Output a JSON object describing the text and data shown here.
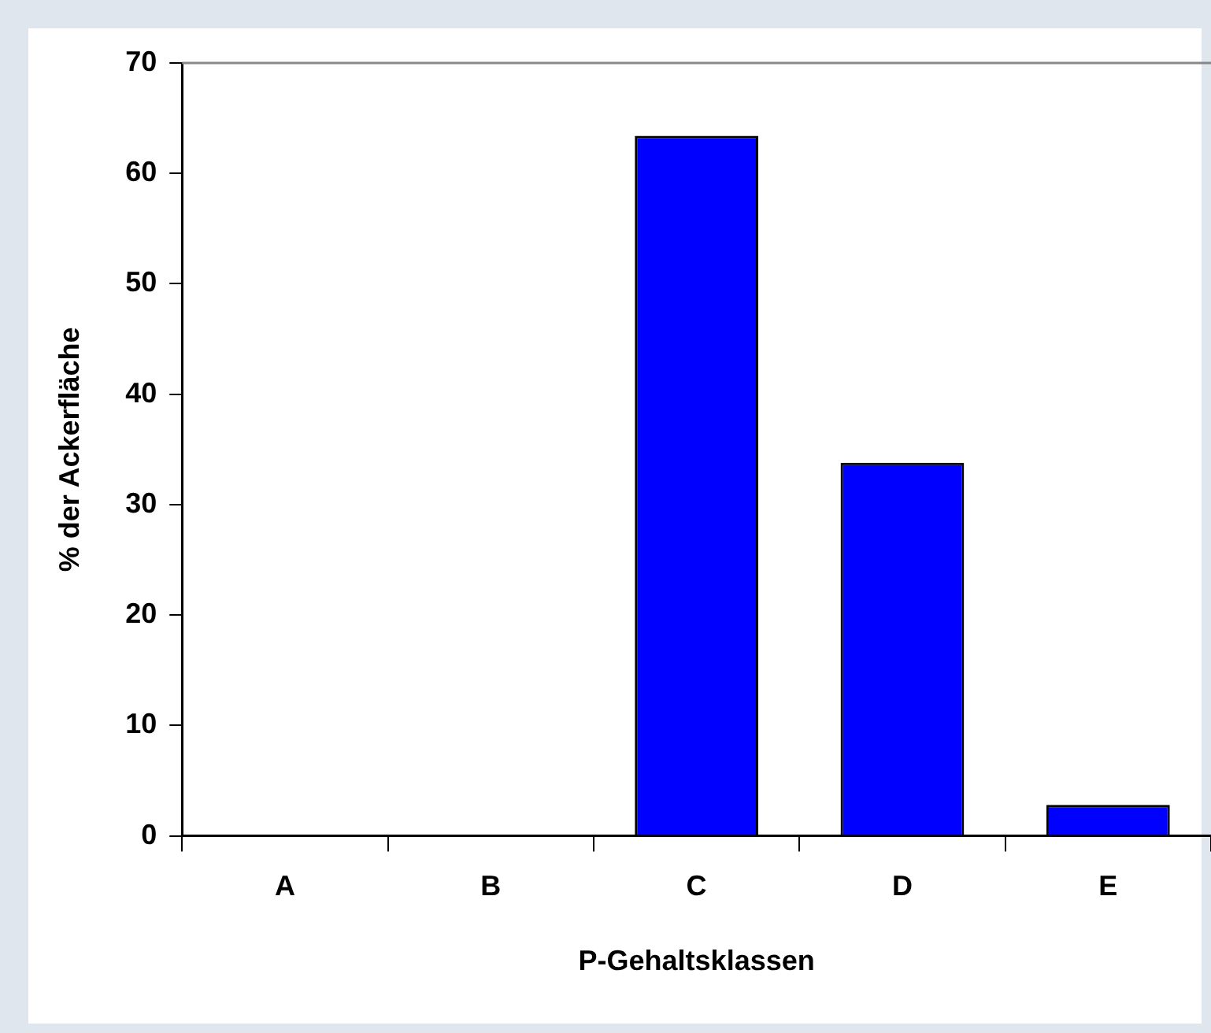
{
  "chart_data": {
    "type": "bar",
    "xlabel": "P-Gehaltsklassen",
    "ylabel": "% der Ackerfläche",
    "categories": [
      "A",
      "B",
      "C",
      "D",
      "E"
    ],
    "values": [
      0,
      0,
      63.4,
      33.8,
      2.8
    ],
    "color": "#0000ff",
    "ylim": [
      0,
      70
    ],
    "yticks": [
      0,
      10,
      20,
      30,
      40,
      50,
      60,
      70
    ],
    "grid": false,
    "legend": false
  }
}
